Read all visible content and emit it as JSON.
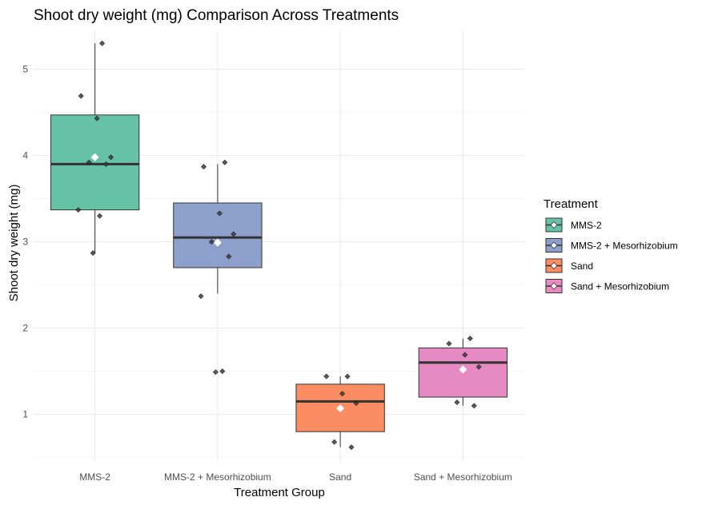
{
  "chart_data": {
    "type": "box",
    "title": "Shoot dry weight (mg) Comparison Across Treatments",
    "xlabel": "Treatment Group",
    "ylabel": "Shoot dry weight (mg)",
    "ylim": [
      0.45,
      5.45
    ],
    "yticks": [
      1,
      2,
      3,
      4,
      5
    ],
    "grid": true,
    "legend_position": "right",
    "legend_title": "Treatment",
    "categories": [
      "MMS-2",
      "MMS-2 + Mesorhizobium",
      "Sand",
      "Sand + Mesorhizobium"
    ],
    "series": [
      {
        "name": "MMS-2",
        "color": "#66c2a5",
        "min": 2.87,
        "q1": 3.37,
        "median": 3.9,
        "q3": 4.47,
        "max": 5.3,
        "mean": 3.98,
        "points": [
          5.3,
          4.69,
          4.43,
          3.98,
          3.92,
          3.9,
          3.37,
          3.3,
          2.87
        ]
      },
      {
        "name": "MMS-2 + Mesorhizobium",
        "color": "#8da0cb",
        "min": 2.4,
        "q1": 2.7,
        "median": 3.05,
        "q3": 3.45,
        "max": 3.9,
        "mean": 2.99,
        "points": [
          3.92,
          3.87,
          3.33,
          3.09,
          3.0,
          2.83,
          2.37,
          1.5,
          1.49
        ]
      },
      {
        "name": "Sand",
        "color": "#fc8d62",
        "min": 0.62,
        "q1": 0.8,
        "median": 1.15,
        "q3": 1.35,
        "max": 1.44,
        "mean": 1.07,
        "points": [
          1.44,
          1.44,
          1.24,
          1.13,
          0.68,
          0.62
        ]
      },
      {
        "name": "Sand + Mesorhizobium",
        "color": "#e78ac3",
        "min": 1.1,
        "q1": 1.2,
        "median": 1.6,
        "q3": 1.77,
        "max": 1.88,
        "mean": 1.52,
        "points": [
          1.88,
          1.82,
          1.69,
          1.55,
          1.14,
          1.1
        ]
      }
    ]
  }
}
